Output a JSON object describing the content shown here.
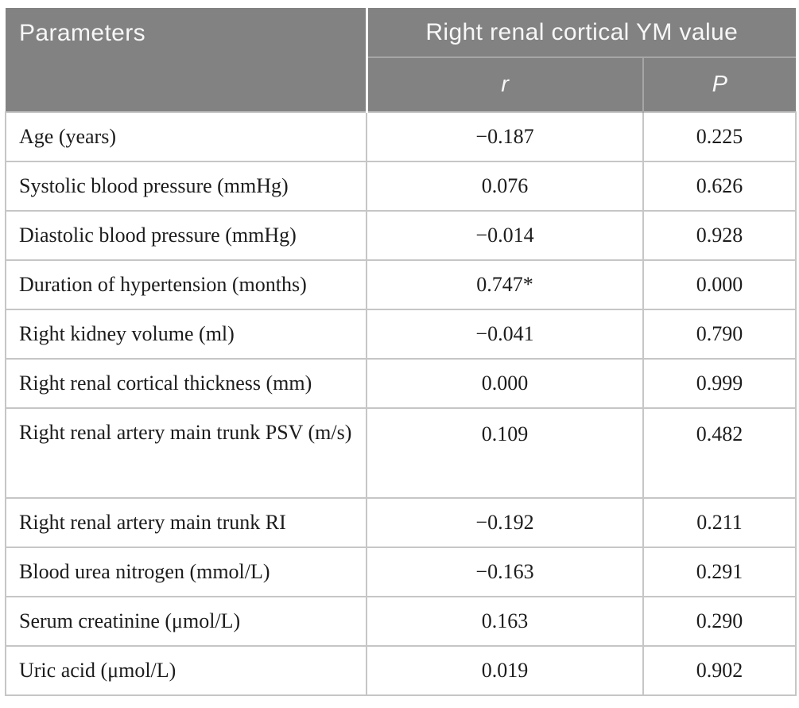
{
  "table": {
    "col1_header": "Parameters",
    "group_header": "Right renal cortical YM value",
    "sub_headers": {
      "r": "r",
      "p": "P"
    },
    "rows": [
      {
        "parameter": "Age (years)",
        "r": "−0.187",
        "p": "0.225",
        "tall": false
      },
      {
        "parameter": "Systolic blood pressure (mmHg)",
        "r": "0.076",
        "p": "0.626",
        "tall": false
      },
      {
        "parameter": "Diastolic blood pressure (mmHg)",
        "r": "−0.014",
        "p": "0.928",
        "tall": false
      },
      {
        "parameter": "Duration of hypertension (months)",
        "r": "0.747*",
        "p": "0.000",
        "tall": false
      },
      {
        "parameter": "Right kidney volume (ml)",
        "r": "−0.041",
        "p": "0.790",
        "tall": false
      },
      {
        "parameter": "Right renal cortical thickness (mm)",
        "r": "0.000",
        "p": "0.999",
        "tall": false
      },
      {
        "parameter": "Right renal artery main trunk PSV (m/s)",
        "r": "0.109",
        "p": "0.482",
        "tall": true
      },
      {
        "parameter": "Right renal artery main trunk RI",
        "r": "−0.192",
        "p": "0.211",
        "tall": false
      },
      {
        "parameter": "Blood urea nitrogen (mmol/L)",
        "r": "−0.163",
        "p": "0.291",
        "tall": false
      },
      {
        "parameter": "Serum creatinine (μmol/L)",
        "r": "0.163",
        "p": "0.290",
        "tall": false
      },
      {
        "parameter": "Uric acid (μmol/L)",
        "r": "0.019",
        "p": "0.902",
        "tall": false
      }
    ],
    "colors": {
      "header_bg": "#828282",
      "header_text": "#f7f7f7",
      "header_divider": "#a6a6a6",
      "body_border": "#c6c6c6",
      "body_text": "#1c1c1c"
    }
  }
}
